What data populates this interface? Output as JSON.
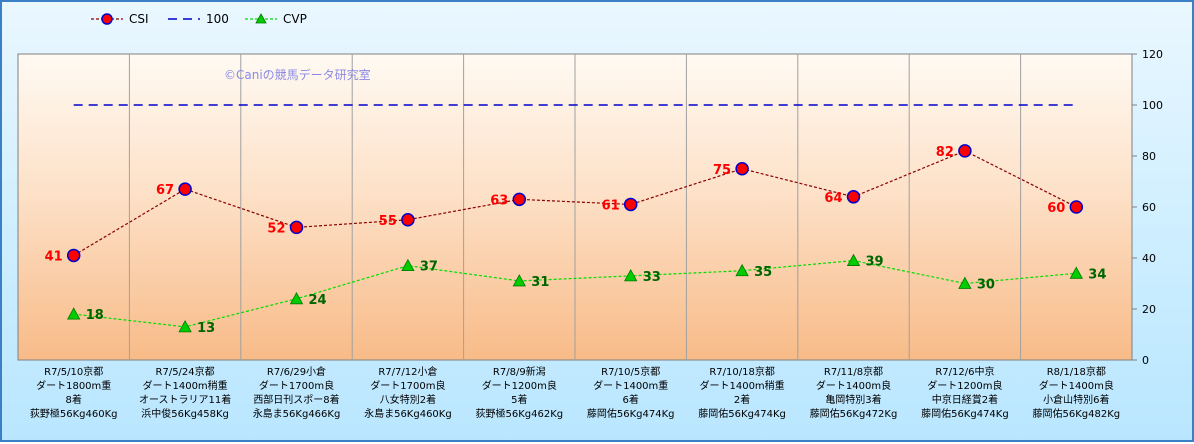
{
  "chart_data": {
    "type": "line",
    "watermark": "©Caniの競馬データ研究室",
    "ylim": [
      0,
      120
    ],
    "yticks": [
      0,
      20,
      40,
      60,
      80,
      100,
      120
    ],
    "categories": [
      [
        "R7/5/10京都",
        "ダート1800m重",
        "8着",
        "荻野極56Kg460Kg"
      ],
      [
        "R7/5/24京都",
        "ダート1400m稍重",
        "オーストラリア11着",
        "浜中俊56Kg458Kg"
      ],
      [
        "R7/6/29小倉",
        "ダート1700m良",
        "西部日刊スポー8着",
        "永島ま56Kg466Kg"
      ],
      [
        "R7/7/12小倉",
        "ダート1700m良",
        "八女特別2着",
        "永島ま56Kg460Kg"
      ],
      [
        "R7/8/9新潟",
        "ダート1200m良",
        "5着",
        "荻野極56Kg462Kg"
      ],
      [
        "R7/10/5京都",
        "ダート1400m重",
        "6着",
        "藤岡佑56Kg474Kg"
      ],
      [
        "R7/10/18京都",
        "ダート1400m稍重",
        "2着",
        "藤岡佑56Kg474Kg"
      ],
      [
        "R7/11/8京都",
        "ダート1400m良",
        "亀岡特別3着",
        "藤岡佑56Kg472Kg"
      ],
      [
        "R7/12/6中京",
        "ダート1200m良",
        "中京日経賞2着",
        "藤岡佑56Kg474Kg"
      ],
      [
        "R8/1/18京都",
        "ダート1400m良",
        "小倉山特別6着",
        "藤岡佑56Kg482Kg"
      ]
    ],
    "series": [
      {
        "name": "CSI",
        "values": [
          41,
          67,
          52,
          55,
          63,
          61,
          75,
          64,
          82,
          60
        ],
        "color": "#8b0000",
        "marker_color": "#ff0000",
        "marker_edge": "#0000cc"
      },
      {
        "name": "100",
        "values": [
          100,
          100,
          100,
          100,
          100,
          100,
          100,
          100,
          100,
          100
        ],
        "color": "#0000cc"
      },
      {
        "name": "CVP",
        "values": [
          18,
          13,
          24,
          37,
          31,
          33,
          35,
          39,
          30,
          34
        ],
        "color": "#00dd00",
        "marker_color": "#00cc00"
      }
    ]
  }
}
